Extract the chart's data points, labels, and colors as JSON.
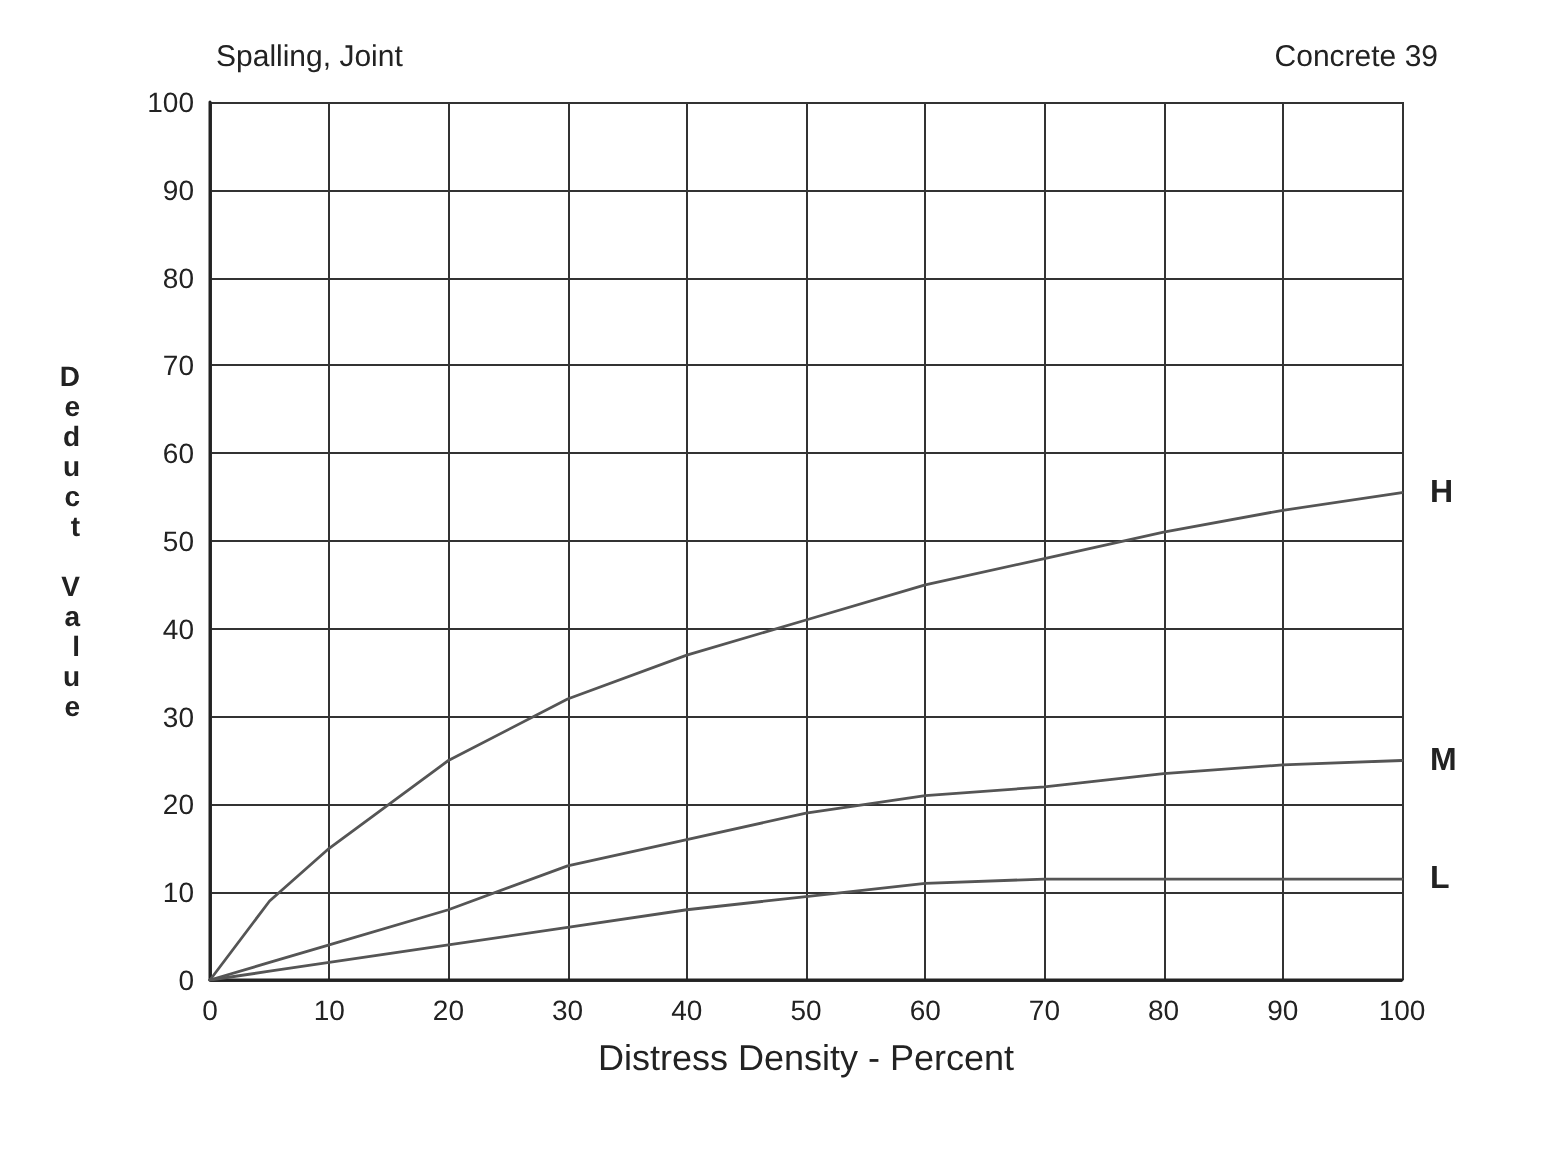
{
  "chart_data": {
    "type": "line",
    "title": "Spalling, Joint",
    "subtitle": "Concrete 39",
    "xlabel": "Distress Density - Percent",
    "ylabel": "Deduct Value",
    "x": [
      0,
      5,
      10,
      20,
      30,
      40,
      50,
      60,
      70,
      80,
      90,
      100
    ],
    "series": [
      {
        "name": "H",
        "color": "#555555",
        "values": [
          0,
          9,
          15,
          25,
          32,
          37,
          41,
          45,
          48,
          51,
          53.5,
          55.5
        ]
      },
      {
        "name": "M",
        "color": "#555555",
        "values": [
          0,
          2,
          4,
          8,
          13,
          16,
          19,
          21,
          22,
          23.5,
          24.5,
          25
        ]
      },
      {
        "name": "L",
        "color": "#555555",
        "values": [
          0,
          1,
          2,
          4,
          6,
          8,
          9.5,
          11,
          11.5,
          11.5,
          11.5,
          11.5
        ]
      }
    ],
    "xlim": [
      0,
      100
    ],
    "ylim": [
      0,
      100
    ],
    "xticks": [
      0,
      10,
      20,
      30,
      40,
      50,
      60,
      70,
      80,
      90,
      100
    ],
    "yticks": [
      0,
      10,
      20,
      30,
      40,
      50,
      60,
      70,
      80,
      90,
      100
    ],
    "grid": true,
    "legend": false,
    "marker": "none",
    "line_style": "solid"
  }
}
